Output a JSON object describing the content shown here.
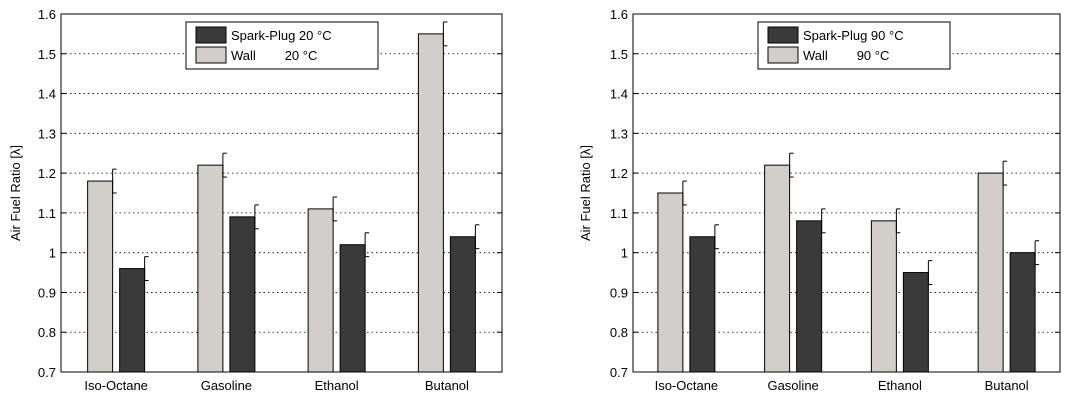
{
  "chart_data": [
    {
      "type": "bar",
      "categories": [
        "Iso-Octane",
        "Gasoline",
        "Ethanol",
        "Butanol"
      ],
      "ylabel": "Air Fuel Ratio [λ]",
      "ylim": [
        0.7,
        1.6
      ],
      "yticks": [
        "0.7",
        "0.8",
        "0.9",
        "1",
        "1.1",
        "1.2",
        "1.3",
        "1.4",
        "1.5",
        "1.6"
      ],
      "grid": true,
      "legend_position": "top-center",
      "series": [
        {
          "name": "Spark-Plug 20 °C",
          "color": "#3a3a3a",
          "values": [
            0.96,
            1.09,
            1.02,
            1.04
          ],
          "error": [
            0.03,
            0.03,
            0.03,
            0.03
          ]
        },
        {
          "name": "Wall        20 °C",
          "color": "#d2cfca",
          "values": [
            1.18,
            1.22,
            1.11,
            1.55
          ],
          "error": [
            0.03,
            0.03,
            0.03,
            0.03
          ]
        }
      ]
    },
    {
      "type": "bar",
      "categories": [
        "Iso-Octane",
        "Gasoline",
        "Ethanol",
        "Butanol"
      ],
      "ylabel": "Air Fuel Ratio [λ]",
      "ylim": [
        0.7,
        1.6
      ],
      "yticks": [
        "0.7",
        "0.8",
        "0.9",
        "1",
        "1.1",
        "1.2",
        "1.3",
        "1.4",
        "1.5",
        "1.6"
      ],
      "grid": true,
      "legend_position": "top-center",
      "series": [
        {
          "name": "Spark-Plug 90 °C",
          "color": "#3a3a3a",
          "values": [
            1.04,
            1.08,
            0.95,
            1.0
          ],
          "error": [
            0.03,
            0.03,
            0.03,
            0.03
          ]
        },
        {
          "name": "Wall        90 °C",
          "color": "#d2cfca",
          "values": [
            1.15,
            1.22,
            1.08,
            1.2
          ],
          "error": [
            0.03,
            0.03,
            0.03,
            0.03
          ]
        }
      ]
    }
  ]
}
